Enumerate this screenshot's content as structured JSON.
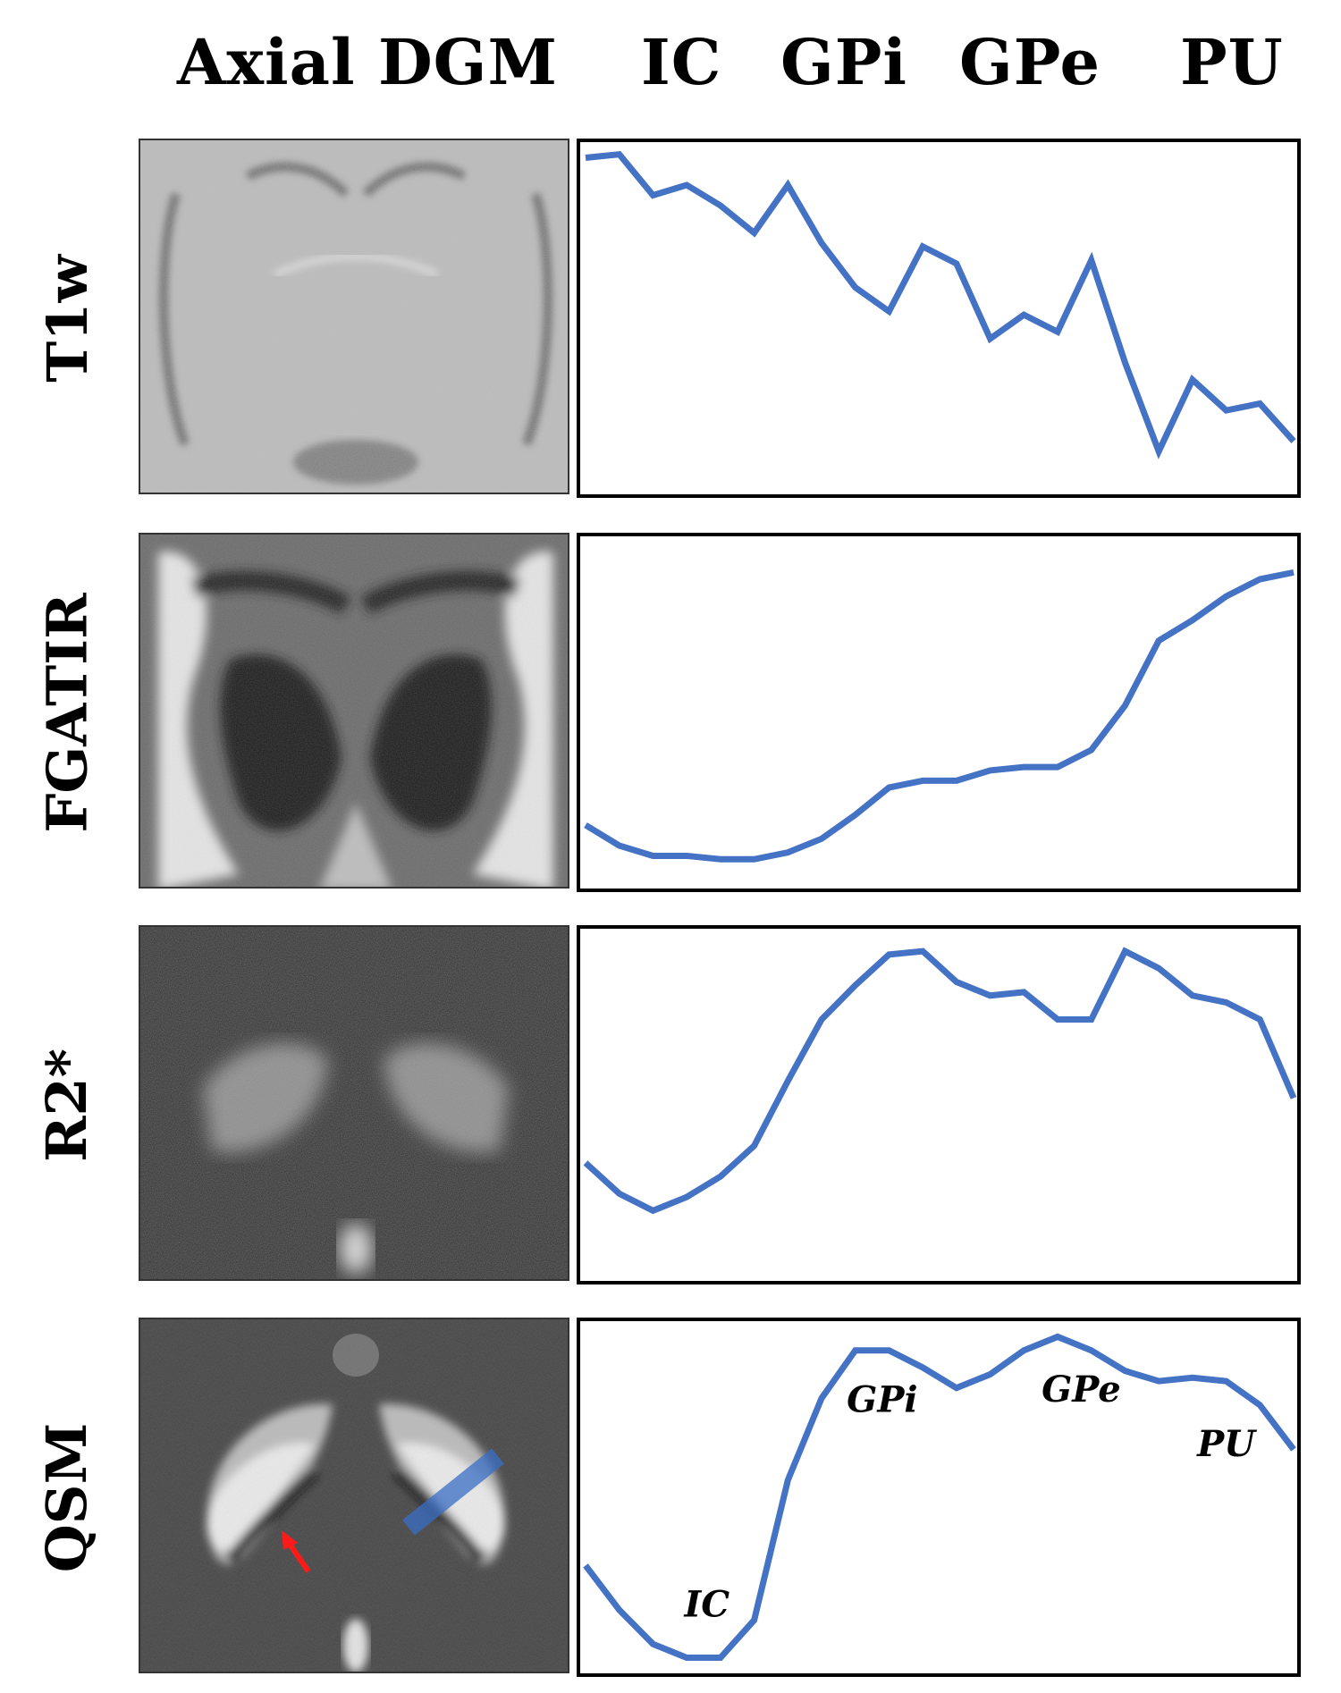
{
  "header": {
    "col1": "Axial  DGM",
    "regions": [
      "IC",
      "GPi",
      "GPe",
      "PU"
    ]
  },
  "rows": [
    {
      "label": "T1w"
    },
    {
      "label": "FGATIR"
    },
    {
      "label": "R2*"
    },
    {
      "label": "QSM"
    }
  ],
  "colors": {
    "line": "#4472C4",
    "arrow": "#ff1a1a",
    "roi": "#3a6fc4"
  },
  "chart_data": [
    {
      "type": "line",
      "title": "T1w",
      "xlabel": "",
      "ylabel": "",
      "x_range": [
        0,
        21
      ],
      "ylim": [
        0,
        1
      ],
      "y": [
        0.97,
        0.98,
        0.86,
        0.89,
        0.83,
        0.75,
        0.89,
        0.72,
        0.59,
        0.52,
        0.71,
        0.66,
        0.44,
        0.51,
        0.46,
        0.67,
        0.37,
        0.11,
        0.32,
        0.23,
        0.25,
        0.14
      ],
      "annotations": []
    },
    {
      "type": "line",
      "title": "FGATIR",
      "xlabel": "",
      "ylabel": "",
      "x_range": [
        0,
        21
      ],
      "ylim": [
        0,
        1
      ],
      "y": [
        0.17,
        0.11,
        0.08,
        0.08,
        0.07,
        0.07,
        0.09,
        0.13,
        0.2,
        0.28,
        0.3,
        0.3,
        0.33,
        0.34,
        0.34,
        0.39,
        0.52,
        0.71,
        0.77,
        0.84,
        0.89,
        0.91
      ],
      "annotations": []
    },
    {
      "type": "line",
      "title": "R2*",
      "xlabel": "",
      "ylabel": "",
      "x_range": [
        0,
        21
      ],
      "ylim": [
        0,
        1
      ],
      "y": [
        0.33,
        0.24,
        0.19,
        0.23,
        0.29,
        0.38,
        0.57,
        0.75,
        0.85,
        0.94,
        0.95,
        0.86,
        0.82,
        0.83,
        0.75,
        0.75,
        0.95,
        0.9,
        0.82,
        0.8,
        0.75,
        0.52
      ],
      "annotations": []
    },
    {
      "type": "line",
      "title": "QSM",
      "xlabel": "",
      "ylabel": "",
      "x_range": [
        0,
        21
      ],
      "ylim": [
        0,
        1
      ],
      "y": [
        0.3,
        0.17,
        0.07,
        0.03,
        0.03,
        0.14,
        0.55,
        0.79,
        0.93,
        0.93,
        0.88,
        0.82,
        0.86,
        0.93,
        0.97,
        0.93,
        0.87,
        0.84,
        0.85,
        0.84,
        0.77,
        0.64
      ],
      "annotations": [
        {
          "text": "IC",
          "x": 3.6,
          "y": 0.15
        },
        {
          "text": "GPi",
          "x": 8.8,
          "y": 0.75
        },
        {
          "text": "GPe",
          "x": 14.7,
          "y": 0.78
        },
        {
          "text": "PU",
          "x": 19.0,
          "y": 0.62
        }
      ]
    }
  ]
}
